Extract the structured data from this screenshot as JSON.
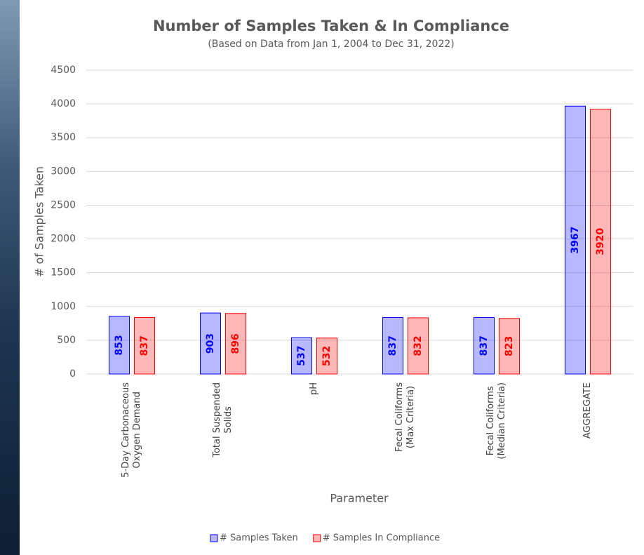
{
  "chart_data": {
    "type": "bar",
    "title": "Number of Samples Taken & In Compliance",
    "subtitle": "(Based on Data from Jan 1, 2004 to Dec 31, 2022)",
    "x_label": "Parameter",
    "y_label": "# of Samples Taken",
    "categories": [
      "5-Day Carbonaceous\nOxygen Demand",
      "Total Suspended\nSolids",
      "pH",
      "Fecal Coliforms\n(Max Criteria)",
      "Fecal Coliforms\n(Median Criteria)",
      "AGGREGATE"
    ],
    "series": [
      {
        "name": "# Samples Taken",
        "color": "#0000ff",
        "values": [
          853,
          903,
          537,
          837,
          837,
          3967
        ]
      },
      {
        "name": "# Samples In Compliance",
        "color": "#ff0000",
        "values": [
          837,
          896,
          532,
          832,
          823,
          3920
        ]
      }
    ],
    "ylim": [
      0,
      4500
    ],
    "yticks": [
      0,
      500,
      1000,
      1500,
      2000,
      2500,
      3000,
      3500,
      4000,
      4500
    ],
    "grid": true,
    "legend": "bottom"
  }
}
